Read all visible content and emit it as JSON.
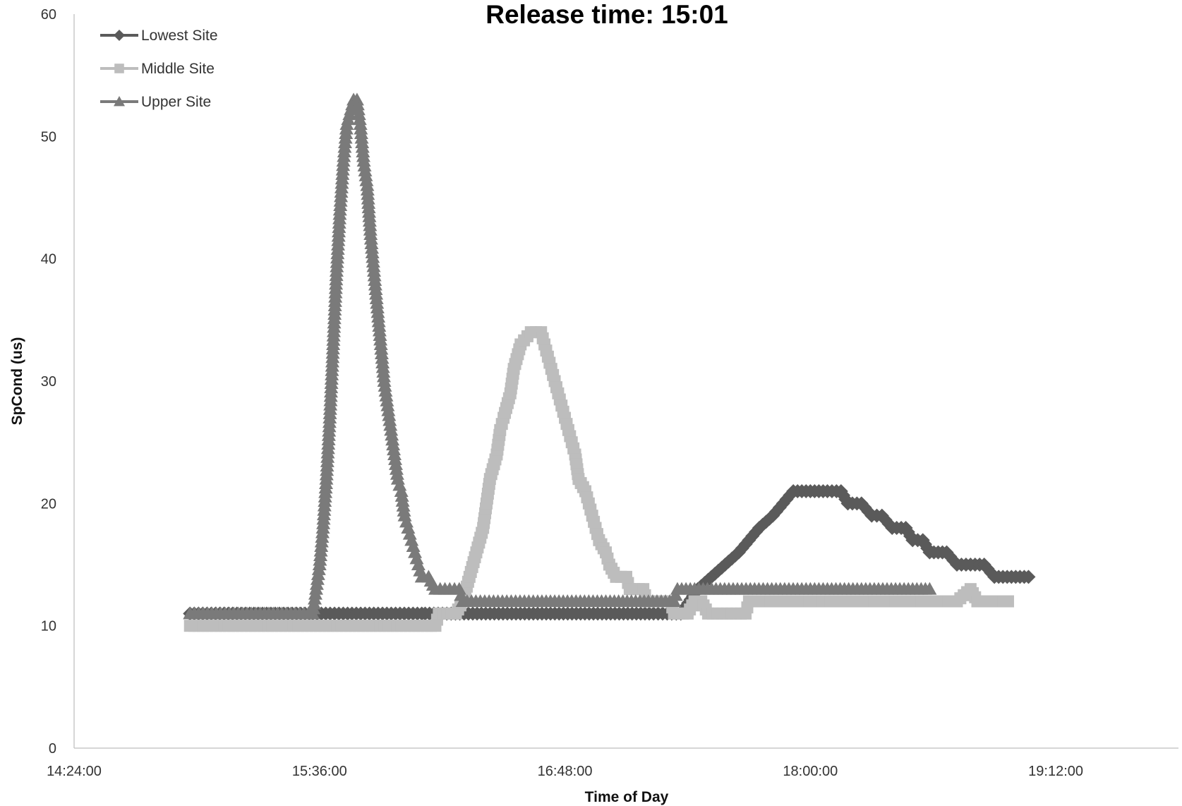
{
  "chart_data": {
    "type": "line",
    "title": "Release time: 15:01",
    "xlabel": "Time of Day",
    "ylabel": "SpCond (us)",
    "xlim": [
      "14:24:00",
      "19:48:00"
    ],
    "ylim": [
      0,
      60
    ],
    "x_ticks": [
      "14:24:00",
      "15:36:00",
      "16:48:00",
      "18:00:00",
      "19:12:00"
    ],
    "y_ticks": [
      0,
      10,
      20,
      30,
      40,
      50,
      60
    ],
    "grid": false,
    "legend_position": "top-left",
    "series": [
      {
        "name": "Lowest Site",
        "marker": "diamond",
        "color": "#5a5a5a",
        "points": [
          [
            "14:58:00",
            11
          ],
          [
            "15:33:00",
            11
          ],
          [
            "15:34:00",
            11
          ],
          [
            "16:06:00",
            11
          ],
          [
            "16:07:00",
            11
          ],
          [
            "16:40:00",
            11
          ],
          [
            "17:14:00",
            11
          ],
          [
            "17:22:00",
            11
          ],
          [
            "17:27:00",
            13
          ],
          [
            "17:31:00",
            14
          ],
          [
            "17:35:00",
            15
          ],
          [
            "17:39:00",
            16
          ],
          [
            "17:42:00",
            17
          ],
          [
            "17:45:00",
            18
          ],
          [
            "17:49:00",
            19
          ],
          [
            "17:52:00",
            20
          ],
          [
            "17:55:00",
            21
          ],
          [
            "18:00:00",
            21
          ],
          [
            "18:05:00",
            21
          ],
          [
            "18:09:00",
            21
          ],
          [
            "18:11:00",
            20
          ],
          [
            "18:15:00",
            20
          ],
          [
            "18:18:00",
            19
          ],
          [
            "18:21:00",
            19
          ],
          [
            "18:24:00",
            18
          ],
          [
            "18:28:00",
            18
          ],
          [
            "18:30:00",
            17
          ],
          [
            "18:33:00",
            17
          ],
          [
            "18:35:00",
            16
          ],
          [
            "18:40:00",
            16
          ],
          [
            "18:43:00",
            15
          ],
          [
            "18:51:00",
            15
          ],
          [
            "18:54:00",
            14
          ],
          [
            "19:04:00",
            14
          ]
        ]
      },
      {
        "name": "Middle Site",
        "marker": "square",
        "color": "#bdbdbd",
        "points": [
          [
            "14:58:00",
            10
          ],
          [
            "15:45:00",
            10
          ],
          [
            "16:10:00",
            10
          ],
          [
            "16:11:00",
            11
          ],
          [
            "16:16:00",
            11
          ],
          [
            "16:18:00",
            12
          ],
          [
            "16:20:00",
            14
          ],
          [
            "16:22:00",
            16
          ],
          [
            "16:24:00",
            18
          ],
          [
            "16:25:00",
            20
          ],
          [
            "16:26:00",
            22
          ],
          [
            "16:28:00",
            24
          ],
          [
            "16:29:00",
            26
          ],
          [
            "16:30:00",
            27
          ],
          [
            "16:32:00",
            29
          ],
          [
            "16:33:00",
            31
          ],
          [
            "16:35:00",
            33
          ],
          [
            "16:38:00",
            34
          ],
          [
            "16:41:00",
            34
          ],
          [
            "16:42:00",
            33
          ],
          [
            "16:43:00",
            32
          ],
          [
            "16:44:00",
            31
          ],
          [
            "16:45:00",
            30
          ],
          [
            "16:46:00",
            29
          ],
          [
            "16:47:00",
            28
          ],
          [
            "16:48:00",
            27
          ],
          [
            "16:49:00",
            26
          ],
          [
            "16:50:00",
            25
          ],
          [
            "16:51:00",
            24
          ],
          [
            "16:52:00",
            22
          ],
          [
            "16:54:00",
            21
          ],
          [
            "16:55:00",
            20
          ],
          [
            "16:56:00",
            19
          ],
          [
            "16:57:00",
            18
          ],
          [
            "16:58:00",
            17
          ],
          [
            "17:00:00",
            16
          ],
          [
            "17:01:00",
            15
          ],
          [
            "17:03:00",
            14
          ],
          [
            "17:06:00",
            14
          ],
          [
            "17:07:00",
            13
          ],
          [
            "17:11:00",
            13
          ],
          [
            "17:12:00",
            12
          ],
          [
            "17:19:00",
            12
          ],
          [
            "17:20:00",
            11
          ],
          [
            "17:24:00",
            11
          ],
          [
            "17:26:00",
            12
          ],
          [
            "17:28:00",
            12
          ],
          [
            "17:30:00",
            11
          ],
          [
            "17:41:00",
            11
          ],
          [
            "17:42:00",
            12
          ],
          [
            "18:25:00",
            12
          ],
          [
            "18:43:00",
            12
          ],
          [
            "18:47:00",
            13
          ],
          [
            "18:49:00",
            12
          ],
          [
            "18:58:00",
            12
          ]
        ]
      },
      {
        "name": "Upper Site",
        "marker": "triangle",
        "color": "#7a7a7a",
        "points": [
          [
            "14:58:00",
            11
          ],
          [
            "15:34:00",
            11
          ],
          [
            "15:35:00",
            13
          ],
          [
            "15:36:00",
            15
          ],
          [
            "15:37:00",
            18
          ],
          [
            "15:38:00",
            22
          ],
          [
            "15:39:00",
            27
          ],
          [
            "15:40:00",
            33
          ],
          [
            "15:41:00",
            39
          ],
          [
            "15:42:00",
            44
          ],
          [
            "15:43:00",
            48
          ],
          [
            "15:44:00",
            51
          ],
          [
            "15:46:00",
            53
          ],
          [
            "15:47:00",
            53
          ],
          [
            "15:48:00",
            51
          ],
          [
            "15:49:00",
            48
          ],
          [
            "15:50:00",
            46
          ],
          [
            "15:51:00",
            42
          ],
          [
            "15:52:00",
            39
          ],
          [
            "15:53:00",
            36
          ],
          [
            "15:54:00",
            33
          ],
          [
            "15:55:00",
            30
          ],
          [
            "15:56:00",
            28
          ],
          [
            "15:57:00",
            26
          ],
          [
            "15:58:00",
            24
          ],
          [
            "15:59:00",
            22
          ],
          [
            "16:00:00",
            21
          ],
          [
            "16:01:00",
            19
          ],
          [
            "16:02:00",
            18
          ],
          [
            "16:03:00",
            17
          ],
          [
            "16:04:00",
            16
          ],
          [
            "16:05:00",
            15
          ],
          [
            "16:06:00",
            14
          ],
          [
            "16:08:00",
            14
          ],
          [
            "16:10:00",
            13
          ],
          [
            "16:17:00",
            13
          ],
          [
            "16:18:00",
            12
          ],
          [
            "16:40:00",
            12
          ],
          [
            "17:10:00",
            12
          ],
          [
            "17:20:00",
            12
          ],
          [
            "17:21:00",
            13
          ],
          [
            "18:00:00",
            13
          ],
          [
            "18:35:00",
            13
          ]
        ]
      }
    ]
  }
}
